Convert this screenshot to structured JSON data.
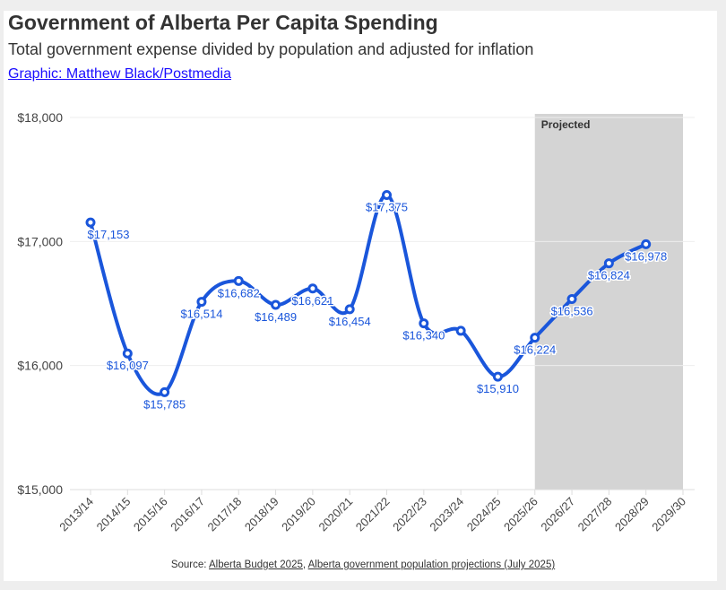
{
  "header": {
    "title": "Government of Alberta Per Capita Spending",
    "subtitle": "Total government expense divided by population and adjusted for inflation",
    "credit": "Graphic: Matthew Black/Postmedia"
  },
  "footer": {
    "source_prefix": "Source: ",
    "source_link_1": "Alberta Budget 2025",
    "separator": ", ",
    "source_link_2": "Alberta government population projections (July 2025)"
  },
  "colors": {
    "line": "#1a56db",
    "label": "#1a56db",
    "projected_band": "#d4d4d4"
  },
  "chart_data": {
    "type": "line",
    "title": "Government of Alberta Per Capita Spending",
    "xlabel": "",
    "ylabel": "",
    "categories": [
      "2013/14",
      "2014/15",
      "2015/16",
      "2016/17",
      "2017/18",
      "2018/19",
      "2019/20",
      "2020/21",
      "2021/22",
      "2022/23",
      "2023/24",
      "2024/25",
      "2025/26",
      "2026/27",
      "2027/28",
      "2028/29",
      "2029/30"
    ],
    "values": [
      17153,
      16097,
      15785,
      16514,
      16682,
      16489,
      16621,
      16454,
      17375,
      16340,
      16280,
      15910,
      16224,
      16536,
      16824,
      16978,
      null
    ],
    "labels": [
      "$17,153",
      "$16,097",
      "$15,785",
      "$16,514",
      "$16,682",
      "$16,489",
      "$16,621",
      "$16,454",
      "$17,375",
      "$16,340",
      null,
      "$15,910",
      "$16,224",
      "$16,536",
      "$16,824",
      "$16,978",
      null
    ],
    "ylim": [
      15000,
      18000
    ],
    "yticks": [
      15000,
      16000,
      17000,
      18000
    ],
    "ytick_labels": [
      "$15,000",
      "$16,000",
      "$17,000",
      "$18,000"
    ],
    "projected_range": [
      "2025/26",
      "2029/30"
    ],
    "projected_label": "Projected",
    "grid": true
  }
}
